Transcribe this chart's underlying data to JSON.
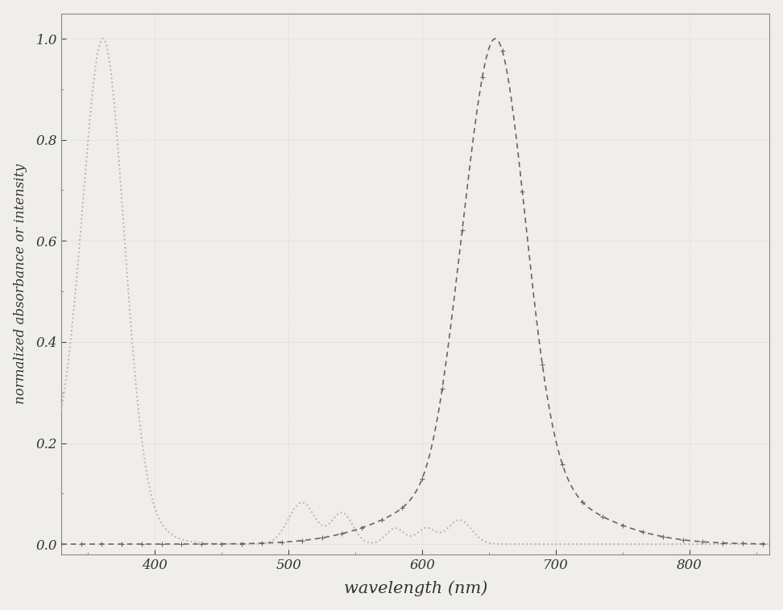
{
  "xlabel": "wavelength (nm)",
  "ylabel": "normalized absorbance or intensity",
  "xlim": [
    330,
    860
  ],
  "ylim": [
    -0.02,
    1.05
  ],
  "yticks": [
    0.0,
    0.2,
    0.4,
    0.6,
    0.8,
    1.0
  ],
  "xticks": [
    400,
    500,
    600,
    700,
    800
  ],
  "background_color": "#f0eeeb",
  "line1_color": "#b8b4b0",
  "line2_color": "#6a6560",
  "grid_color": "#d0cdc9",
  "figsize": [
    9.72,
    7.58
  ],
  "dpi": 100
}
